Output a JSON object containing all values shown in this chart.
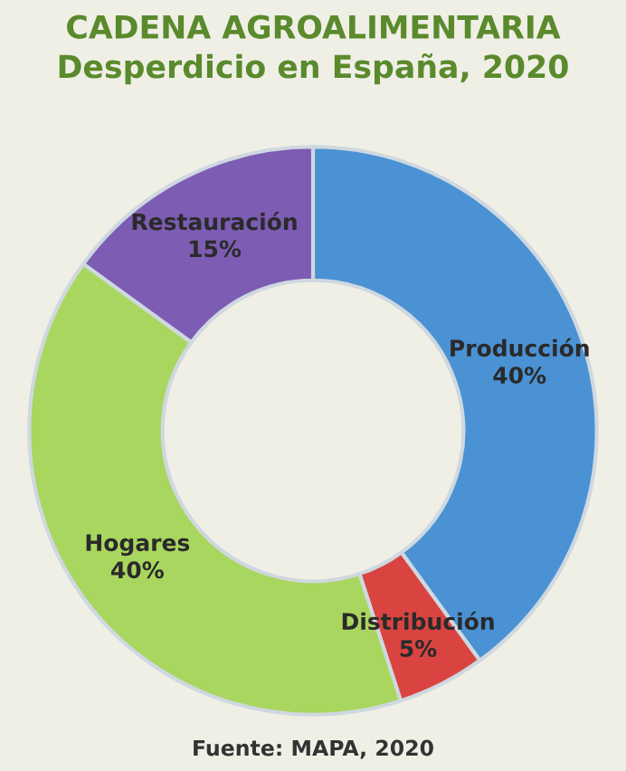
{
  "chart_data": {
    "type": "donut",
    "title": "CADENA AGROALIMENTARIA\nDesperdicio en España, 2020",
    "categories": [
      "Producción",
      "Distribución",
      "Hogares",
      "Restauración"
    ],
    "values": [
      40,
      5,
      40,
      15
    ],
    "value_labels": [
      "40%",
      "5%",
      "40%",
      "15%"
    ],
    "colors": [
      "#4a92d4",
      "#d94441",
      "#a9d65e",
      "#7d5cb4"
    ],
    "annotations": [
      "Fuente: MAPA, 2020"
    ],
    "legend": false
  }
}
